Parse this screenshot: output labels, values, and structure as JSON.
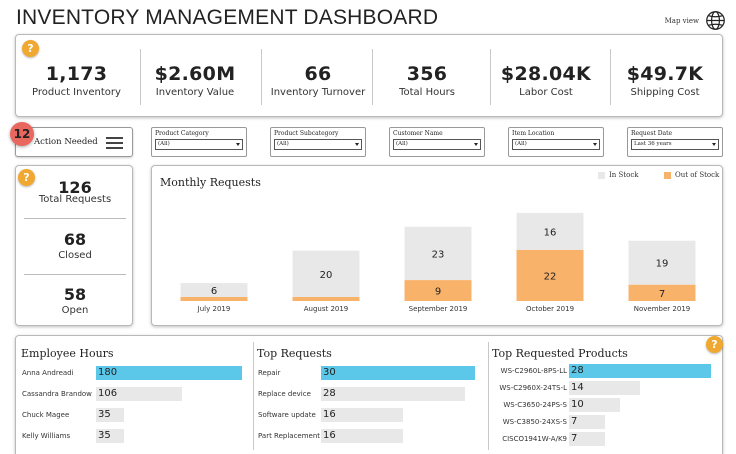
{
  "header": {
    "title": "INVENTORY MANAGEMENT DASHBOARD",
    "map_view_label": "Map view"
  },
  "kpis": [
    {
      "value": "1,173",
      "label": "Product Inventory"
    },
    {
      "value": "$2.60M",
      "label": "Inventory Value"
    },
    {
      "value": "66",
      "label": "Inventory Turnover"
    },
    {
      "value": "356",
      "label": "Total Hours"
    },
    {
      "value": "$28.04K",
      "label": "Labor Cost"
    },
    {
      "value": "$49.7K",
      "label": "Shipping Cost"
    }
  ],
  "help_glyph": "?",
  "action": {
    "label": "Action Needed",
    "badge": "12"
  },
  "filters": [
    {
      "label": "Product Category",
      "value": "(All)"
    },
    {
      "label": "Product Subcategory",
      "value": "(All)"
    },
    {
      "label": "Customer Name",
      "value": "(All)"
    },
    {
      "label": "Item Location",
      "value": "(All)"
    },
    {
      "label": "Request Date",
      "value": "Last 36 years"
    }
  ],
  "requests": {
    "total_value": "126",
    "total_label": "Total Requests",
    "closed_value": "68",
    "closed_label": "Closed",
    "open_value": "58",
    "open_label": "Open"
  },
  "chart_data": {
    "type": "bar",
    "stacked": true,
    "title": "Monthly Requests",
    "categories": [
      "July 2019",
      "August 2019",
      "September 2019",
      "October 2019",
      "November 2019"
    ],
    "series": [
      {
        "name": "Out of Stock",
        "color": "#f9b26a",
        "values": [
          0,
          0,
          9,
          22,
          7
        ]
      },
      {
        "name": "In Stock",
        "color": "#e8e8e8",
        "values": [
          6,
          20,
          23,
          16,
          19
        ]
      }
    ],
    "legend_order": [
      "In Stock",
      "Out of Stock"
    ],
    "legend_position": "top-right",
    "ylim": [
      0,
      40
    ],
    "grid": false
  },
  "employee_hours": {
    "title": "Employee Hours",
    "bar_color": "#5bc8ea",
    "rows": [
      {
        "name": "Anna Andreadi",
        "value": 180
      },
      {
        "name": "Cassandra Brandow",
        "value": 106
      },
      {
        "name": "Chuck Magee",
        "value": 35
      },
      {
        "name": "Kelly Williams",
        "value": 35
      }
    ]
  },
  "top_requests": {
    "title": "Top Requests",
    "bar_color": "#5bc8ea",
    "rows": [
      {
        "name": "Repair",
        "value": 30
      },
      {
        "name": "Replace device",
        "value": 28
      },
      {
        "name": "Software update",
        "value": 16
      },
      {
        "name": "Part Replacement",
        "value": 16
      }
    ]
  },
  "top_products": {
    "title": "Top Requested Products",
    "bar_color": "#5bc8ea",
    "rows": [
      {
        "name": "WS-C2960L-8PS-LL",
        "value": 28
      },
      {
        "name": "WS-C2960X-24TS-L",
        "value": 14
      },
      {
        "name": "WS-C3650-24PS-S",
        "value": 10
      },
      {
        "name": "WS-C3850-24XS-S",
        "value": 7
      },
      {
        "name": "CISCO1941W-A/K9",
        "value": 7
      }
    ]
  }
}
